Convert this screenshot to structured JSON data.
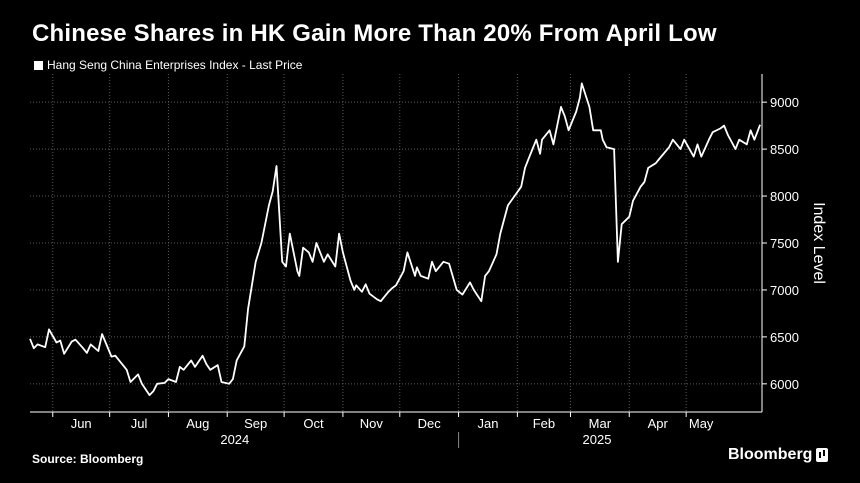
{
  "header": {
    "title": "Chinese Shares in HK Gain More Than 20% From April Low",
    "legend_label": "Hang Seng China Enterprises Index - Last Price"
  },
  "footer": {
    "source": "Source: Bloomberg",
    "brand": "Bloomberg"
  },
  "colors": {
    "background": "#000000",
    "line": "#ffffff",
    "grid": "#5a5a5a"
  },
  "chart_data": {
    "type": "line",
    "title": "Chinese Shares in HK Gain More Than 20% From April Low",
    "ylabel": "Index Level",
    "ylim": [
      5700,
      9300
    ],
    "y_ticks": [
      6000,
      6500,
      7000,
      7500,
      8000,
      8500,
      9000
    ],
    "y_tick_labels": [
      "6000",
      "6500",
      "7000",
      "7500",
      "8000",
      "8500",
      "9000"
    ],
    "grid": true,
    "legend_position": "top-left",
    "x_tick_labels": [
      "Jun",
      "Jul",
      "Aug",
      "Sep",
      "Oct",
      "Nov",
      "Dec",
      "Jan",
      "Feb",
      "Mar",
      "Apr",
      "May"
    ],
    "x_tick_dates": [
      "2024-06-01",
      "2024-07-01",
      "2024-08-01",
      "2024-09-01",
      "2024-10-01",
      "2024-11-01",
      "2024-12-01",
      "2025-01-01",
      "2025-02-01",
      "2025-03-01",
      "2025-04-01",
      "2025-05-01"
    ],
    "year_labels": [
      {
        "label": "2024",
        "date": "2024-09-05"
      },
      {
        "label": "2025",
        "date": "2025-03-15"
      }
    ],
    "year_divider_date": "2025-01-01",
    "x_range": [
      "2024-05-20",
      "2025-06-10"
    ],
    "series": [
      {
        "name": "Hang Seng China Enterprises Index - Last Price",
        "x": [
          "2024-05-20",
          "2024-05-22",
          "2024-05-24",
          "2024-05-28",
          "2024-05-30",
          "2024-06-03",
          "2024-06-05",
          "2024-06-07",
          "2024-06-11",
          "2024-06-13",
          "2024-06-17",
          "2024-06-19",
          "2024-06-21",
          "2024-06-25",
          "2024-06-27",
          "2024-07-02",
          "2024-07-04",
          "2024-07-08",
          "2024-07-10",
          "2024-07-12",
          "2024-07-16",
          "2024-07-18",
          "2024-07-22",
          "2024-07-24",
          "2024-07-26",
          "2024-07-30",
          "2024-08-01",
          "2024-08-05",
          "2024-08-07",
          "2024-08-09",
          "2024-08-13",
          "2024-08-15",
          "2024-08-19",
          "2024-08-21",
          "2024-08-23",
          "2024-08-27",
          "2024-08-29",
          "2024-09-02",
          "2024-09-04",
          "2024-09-06",
          "2024-09-10",
          "2024-09-12",
          "2024-09-16",
          "2024-09-19",
          "2024-09-23",
          "2024-09-25",
          "2024-09-27",
          "2024-09-30",
          "2024-10-02",
          "2024-10-04",
          "2024-10-08",
          "2024-10-09",
          "2024-10-11",
          "2024-10-14",
          "2024-10-16",
          "2024-10-18",
          "2024-10-22",
          "2024-10-24",
          "2024-10-28",
          "2024-10-30",
          "2024-11-01",
          "2024-11-05",
          "2024-11-07",
          "2024-11-08",
          "2024-11-11",
          "2024-11-13",
          "2024-11-15",
          "2024-11-19",
          "2024-11-21",
          "2024-11-25",
          "2024-11-27",
          "2024-11-29",
          "2024-12-03",
          "2024-12-05",
          "2024-12-09",
          "2024-12-10",
          "2024-12-12",
          "2024-12-16",
          "2024-12-18",
          "2024-12-20",
          "2024-12-24",
          "2024-12-27",
          "2024-12-31",
          "2025-01-03",
          "2025-01-07",
          "2025-01-09",
          "2025-01-13",
          "2025-01-15",
          "2025-01-17",
          "2025-01-21",
          "2025-01-23",
          "2025-01-27",
          "2025-02-03",
          "2025-02-05",
          "2025-02-07",
          "2025-02-11",
          "2025-02-13",
          "2025-02-14",
          "2025-02-18",
          "2025-02-20",
          "2025-02-24",
          "2025-02-26",
          "2025-02-28",
          "2025-03-04",
          "2025-03-06",
          "2025-03-07",
          "2025-03-11",
          "2025-03-13",
          "2025-03-17",
          "2025-03-18",
          "2025-03-20",
          "2025-03-24",
          "2025-03-26",
          "2025-03-28",
          "2025-04-01",
          "2025-04-03",
          "2025-04-07",
          "2025-04-09",
          "2025-04-11",
          "2025-04-15",
          "2025-04-17",
          "2025-04-22",
          "2025-04-24",
          "2025-04-28",
          "2025-04-30",
          "2025-05-05",
          "2025-05-07",
          "2025-05-09",
          "2025-05-13",
          "2025-05-15",
          "2025-05-19",
          "2025-05-21",
          "2025-05-23",
          "2025-05-27",
          "2025-05-29",
          "2025-06-02",
          "2025-06-04",
          "2025-06-06",
          "2025-06-09"
        ],
        "values": [
          6480,
          6380,
          6420,
          6390,
          6580,
          6440,
          6460,
          6320,
          6450,
          6470,
          6380,
          6330,
          6420,
          6350,
          6530,
          6290,
          6300,
          6200,
          6150,
          6020,
          6100,
          6000,
          5880,
          5920,
          6000,
          6010,
          6050,
          6020,
          6180,
          6150,
          6250,
          6180,
          6300,
          6210,
          6150,
          6200,
          6020,
          6000,
          6050,
          6250,
          6400,
          6800,
          7300,
          7500,
          7900,
          8050,
          8320,
          7300,
          7250,
          7600,
          7200,
          7150,
          7450,
          7400,
          7300,
          7500,
          7300,
          7380,
          7250,
          7600,
          7400,
          7100,
          7000,
          7050,
          6980,
          7060,
          6960,
          6900,
          6880,
          6980,
          7020,
          7050,
          7200,
          7400,
          7150,
          7240,
          7150,
          7120,
          7300,
          7200,
          7300,
          7280,
          7000,
          6950,
          7080,
          7000,
          6880,
          7150,
          7200,
          7380,
          7600,
          7900,
          8100,
          8300,
          8400,
          8600,
          8450,
          8600,
          8700,
          8550,
          8950,
          8850,
          8700,
          8900,
          9050,
          9200,
          8950,
          8700,
          8700,
          8600,
          8520,
          8500,
          7300,
          7700,
          7780,
          7950,
          8100,
          8150,
          8300,
          8350,
          8400,
          8520,
          8600,
          8500,
          8600,
          8420,
          8550,
          8420,
          8600,
          8680,
          8720,
          8750,
          8650,
          8500,
          8600,
          8550,
          8700,
          8600,
          8760
        ]
      }
    ]
  }
}
